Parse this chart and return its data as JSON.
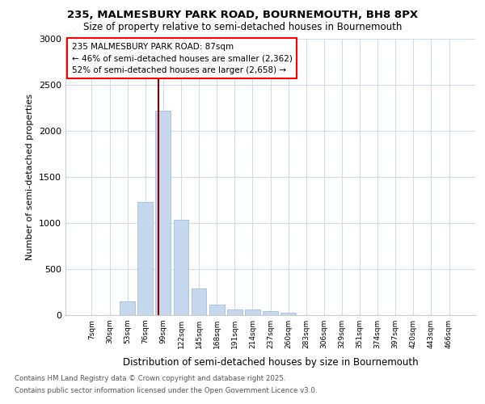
{
  "title1": "235, MALMESBURY PARK ROAD, BOURNEMOUTH, BH8 8PX",
  "title2": "Size of property relative to semi-detached houses in Bournemouth",
  "xlabel": "Distribution of semi-detached houses by size in Bournemouth",
  "ylabel": "Number of semi-detached properties",
  "categories": [
    "7sqm",
    "30sqm",
    "53sqm",
    "76sqm",
    "99sqm",
    "122sqm",
    "145sqm",
    "168sqm",
    "191sqm",
    "214sqm",
    "237sqm",
    "260sqm",
    "283sqm",
    "306sqm",
    "329sqm",
    "351sqm",
    "374sqm",
    "397sqm",
    "420sqm",
    "443sqm",
    "466sqm"
  ],
  "values": [
    0,
    0,
    150,
    1230,
    2220,
    1030,
    290,
    110,
    60,
    60,
    40,
    30,
    0,
    0,
    0,
    0,
    0,
    0,
    0,
    0,
    0
  ],
  "bar_color": "#c5d8ed",
  "bar_edge_color": "#aac4de",
  "red_line_x": 3.72,
  "annotation_text1": "235 MALMESBURY PARK ROAD: 87sqm",
  "annotation_text2": "← 46% of semi-detached houses are smaller (2,362)",
  "annotation_text3": "52% of semi-detached houses are larger (2,658) →",
  "ylim": [
    0,
    3000
  ],
  "yticks": [
    0,
    500,
    1000,
    1500,
    2000,
    2500,
    3000
  ],
  "footer1": "Contains HM Land Registry data © Crown copyright and database right 2025.",
  "footer2": "Contains public sector information licensed under the Open Government Licence v3.0.",
  "bg_color": "#ffffff",
  "plot_bg_color": "#ffffff",
  "grid_color": "#d0dce8"
}
